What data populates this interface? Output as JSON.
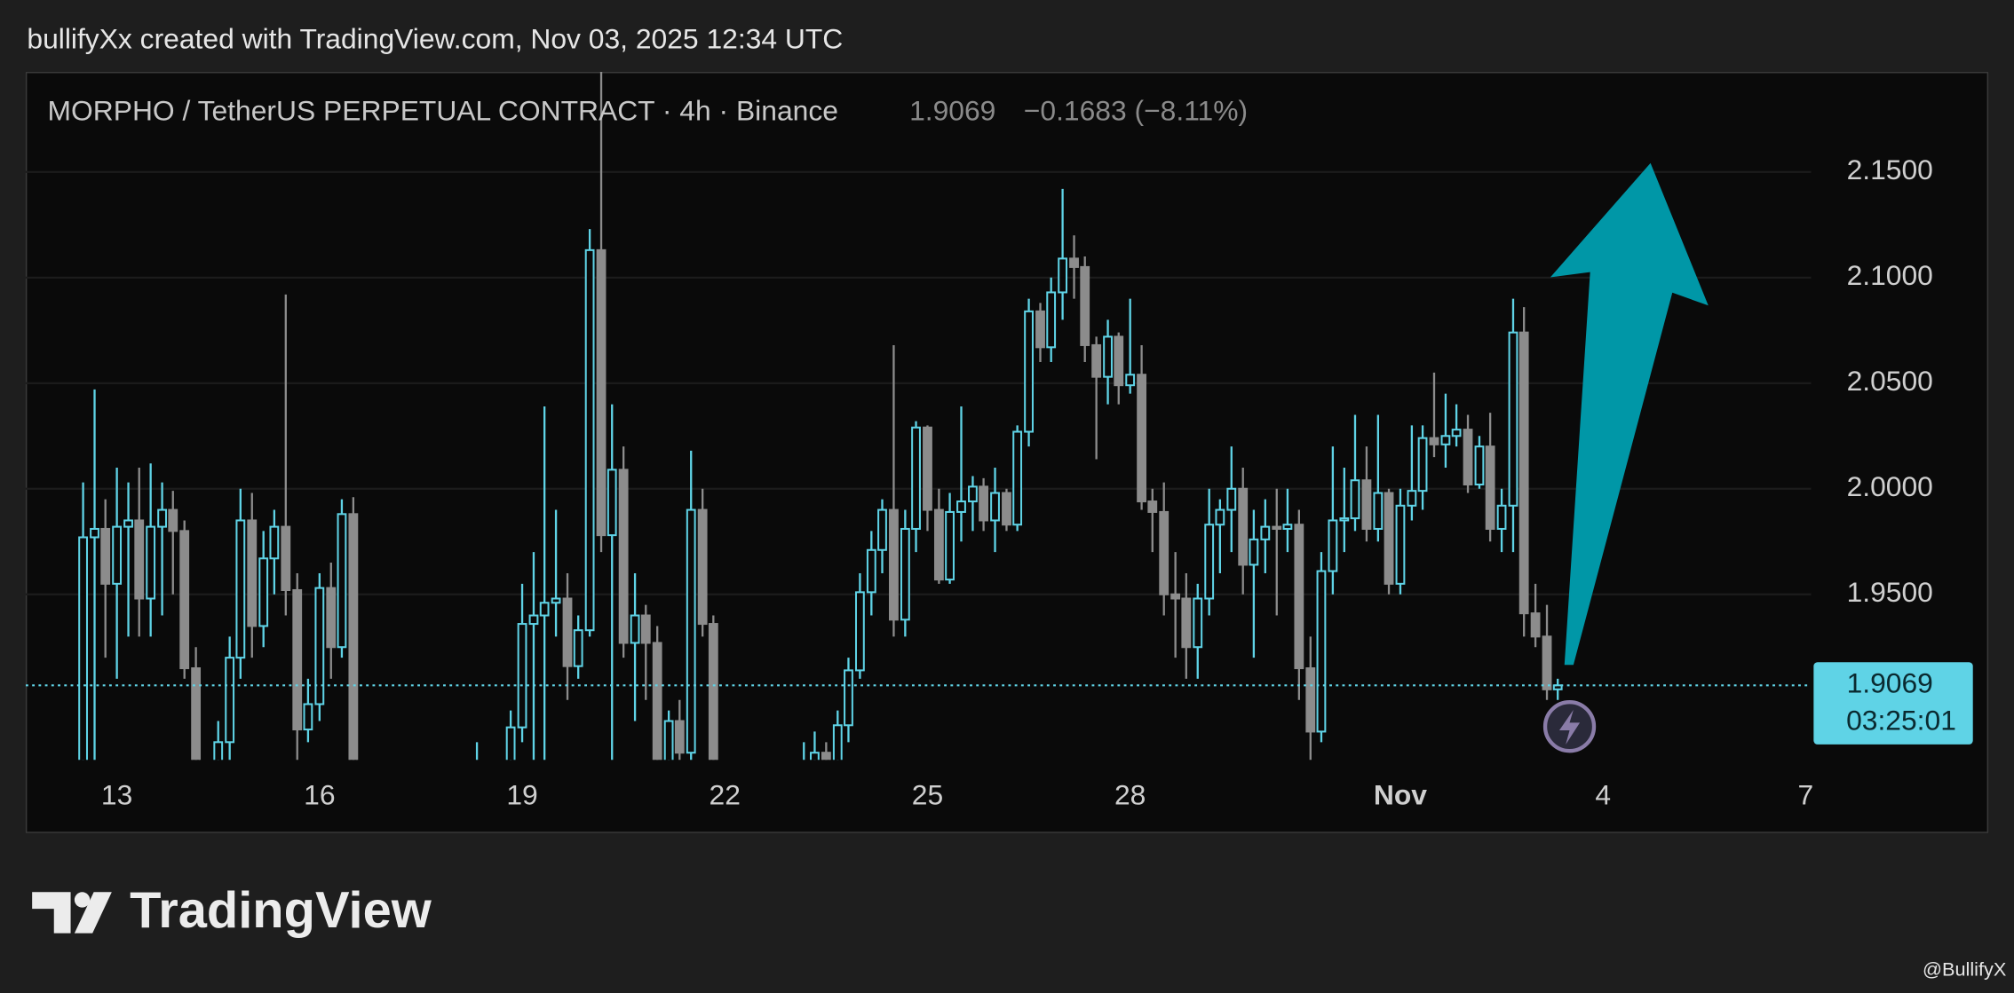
{
  "header": {
    "caption": "bullifyXx created with TradingView.com, Nov 03, 2025 12:34 UTC"
  },
  "footer": {
    "logo": "TradingView",
    "watermark": "@BullifyX"
  },
  "chart_data": {
    "type": "candlestick",
    "title": "MORPHO / TetherUS PERPETUAL CONTRACT · 4h · Binance",
    "change": "−0.1683 (−8.11%)",
    "last_price": 1.9069,
    "countdown": "03:25:01",
    "up_color": "#5fd3e6",
    "down_color": "#8c8c8c",
    "grid": true,
    "xlim": [
      11.65,
      38.08
    ],
    "xticks": [
      13,
      16,
      19,
      22,
      25,
      28,
      {
        "value": 32,
        "label": "Nov"
      },
      {
        "value": 35,
        "label": "4"
      },
      {
        "value": 38,
        "label": "7"
      }
    ],
    "ylim": [
      1.8716,
      2.1974
    ],
    "yticks": [
      {
        "value": 2.15,
        "label": "2.1500"
      },
      {
        "value": 2.1,
        "label": "2.1000"
      },
      {
        "value": 2.05,
        "label": "2.0500"
      },
      {
        "value": 2,
        "label": "2.0000"
      },
      {
        "value": 1.95,
        "label": "1.9500"
      }
    ],
    "x": [
      12.5,
      12.67,
      12.83,
      13,
      13.17,
      13.33,
      13.5,
      13.67,
      13.83,
      14,
      14.17,
      14.33,
      14.5,
      14.67,
      14.83,
      15,
      15.17,
      15.33,
      15.5,
      15.67,
      15.83,
      16,
      16.17,
      16.33,
      16.5,
      16.67,
      16.83,
      17,
      17.17,
      17.33,
      17.5,
      17.67,
      17.83,
      18,
      18.17,
      18.33,
      18.5,
      18.67,
      18.83,
      19,
      19.17,
      19.33,
      19.5,
      19.67,
      19.83,
      20,
      20.17,
      20.33,
      20.5,
      20.67,
      20.83,
      21,
      21.17,
      21.33,
      21.5,
      21.67,
      21.83,
      22,
      22.17,
      22.33,
      22.5,
      22.67,
      22.83,
      23,
      23.17,
      23.33,
      23.5,
      23.67,
      23.83,
      24,
      24.17,
      24.33,
      24.5,
      24.67,
      24.83,
      25,
      25.17,
      25.33,
      25.5,
      25.67,
      25.83,
      26,
      26.17,
      26.33,
      26.5,
      26.67,
      26.83,
      27,
      27.17,
      27.33,
      27.5,
      27.67,
      27.83,
      28,
      28.17,
      28.33,
      28.5,
      28.67,
      28.83,
      29,
      29.17,
      29.33,
      29.5,
      29.67,
      29.83,
      30,
      30.17,
      30.33,
      30.5,
      30.67,
      30.83,
      31,
      31.17,
      31.33,
      31.5,
      31.67,
      31.83,
      32,
      32.17,
      32.33,
      32.5,
      32.67,
      32.83,
      33,
      33.17,
      33.33,
      33.5,
      33.67,
      33.83,
      34,
      34.17,
      34.33
    ],
    "open": [
      1.86,
      1.977,
      1.981,
      1.955,
      1.982,
      1.985,
      1.948,
      1.982,
      1.99,
      1.98,
      1.915,
      1.86,
      1.845,
      1.88,
      1.92,
      1.985,
      1.935,
      1.967,
      1.982,
      1.952,
      1.886,
      1.898,
      1.953,
      1.925,
      1.988,
      1.86,
      1.83,
      1.84,
      1.825,
      1.835,
      1.85,
      1.838,
      1.82,
      1.83,
      1.845,
      1.85,
      1.865,
      1.84,
      1.85,
      1.887,
      1.936,
      1.94,
      1.946,
      1.948,
      1.916,
      1.933,
      2.113,
      1.978,
      2.009,
      1.927,
      1.94,
      1.927,
      1.86,
      1.89,
      1.875,
      1.99,
      1.936,
      1.86,
      1.84,
      1.83,
      1.845,
      1.835,
      1.82,
      1.83,
      1.85,
      1.87,
      1.875,
      1.86,
      1.888,
      1.914,
      1.951,
      1.971,
      1.99,
      1.938,
      1.981,
      2.029,
      1.99,
      1.957,
      1.989,
      1.994,
      2.001,
      1.985,
      1.998,
      1.983,
      2.027,
      2.084,
      2.067,
      2.093,
      2.109,
      2.105,
      2.068,
      2.053,
      2.072,
      2.049,
      2.054,
      1.994,
      1.989,
      1.95,
      1.948,
      1.925,
      1.948,
      1.983,
      1.99,
      2.0,
      1.964,
      1.976,
      1.982,
      1.981,
      1.983,
      1.915,
      1.885,
      1.961,
      1.985,
      1.986,
      2.004,
      1.981,
      1.998,
      1.955,
      1.992,
      1.999,
      2.024,
      2.021,
      2.025,
      2.028,
      2.002,
      2.02,
      1.981,
      1.992,
      2.074,
      1.941,
      1.93,
      1.905
    ],
    "high": [
      2.003,
      2.047,
      1.995,
      2.01,
      2.003,
      2.01,
      2.012,
      2.003,
      1.999,
      1.985,
      1.925,
      1.87,
      1.89,
      1.93,
      2.0,
      1.998,
      1.98,
      1.99,
      2.092,
      1.96,
      1.91,
      1.96,
      1.965,
      1.995,
      1.996,
      1.868,
      1.85,
      1.86,
      1.84,
      1.86,
      1.865,
      1.85,
      1.84,
      1.855,
      1.86,
      1.88,
      1.87,
      1.86,
      1.895,
      1.955,
      1.97,
      2.039,
      1.99,
      1.96,
      1.94,
      2.123,
      2.22,
      2.04,
      2.02,
      1.96,
      1.945,
      1.935,
      1.895,
      1.9,
      2.018,
      2.0,
      1.94,
      1.865,
      1.86,
      1.85,
      1.86,
      1.85,
      1.84,
      1.86,
      1.88,
      1.885,
      1.88,
      1.895,
      1.92,
      1.96,
      1.98,
      1.995,
      2.068,
      1.99,
      2.032,
      2.03,
      2.0,
      1.998,
      2.039,
      2.006,
      2.005,
      2.01,
      2.0,
      2.03,
      2.09,
      2.088,
      2.1,
      2.142,
      2.12,
      2.11,
      2.072,
      2.08,
      2.074,
      2.09,
      2.068,
      2.0,
      2.003,
      1.97,
      1.96,
      1.955,
      2.0,
      1.995,
      2.02,
      2.01,
      1.99,
      1.995,
      2.0,
      2.0,
      1.99,
      1.93,
      1.97,
      2.02,
      2.01,
      2.035,
      2.02,
      2.035,
      2.0,
      2.0,
      2.03,
      2.03,
      2.055,
      2.045,
      2.04,
      2.035,
      2.025,
      2.036,
      2.0,
      2.09,
      2.086,
      1.955,
      1.945,
      1.91
    ],
    "low": [
      1.85,
      1.86,
      1.92,
      1.91,
      1.93,
      1.93,
      1.93,
      1.94,
      1.95,
      1.91,
      1.84,
      1.83,
      1.83,
      1.87,
      1.91,
      1.92,
      1.925,
      1.95,
      1.94,
      1.87,
      1.88,
      1.89,
      1.91,
      1.92,
      1.85,
      1.82,
      1.81,
      1.82,
      1.8,
      1.82,
      1.83,
      1.81,
      1.8,
      1.82,
      1.83,
      1.84,
      1.83,
      1.82,
      1.84,
      1.88,
      1.85,
      1.86,
      1.93,
      1.9,
      1.91,
      1.93,
      1.97,
      1.87,
      1.92,
      1.89,
      1.9,
      1.85,
      1.85,
      1.86,
      1.86,
      1.93,
      1.84,
      1.83,
      1.82,
      1.81,
      1.82,
      1.81,
      1.8,
      1.82,
      1.84,
      1.85,
      1.85,
      1.855,
      1.88,
      1.91,
      1.94,
      1.96,
      1.93,
      1.93,
      1.97,
      1.98,
      1.955,
      1.955,
      1.975,
      1.98,
      1.98,
      1.97,
      1.98,
      1.98,
      2.02,
      2.06,
      2.06,
      2.08,
      2.09,
      2.06,
      2.014,
      2.04,
      2.04,
      2.045,
      1.99,
      1.97,
      1.94,
      1.92,
      1.91,
      1.91,
      1.94,
      1.96,
      1.97,
      1.95,
      1.92,
      1.96,
      1.94,
      1.97,
      1.9,
      1.87,
      1.88,
      1.95,
      1.97,
      1.98,
      1.975,
      1.975,
      1.95,
      1.95,
      1.985,
      1.99,
      2.015,
      2.01,
      2.02,
      1.998,
      2.0,
      1.975,
      1.97,
      1.97,
      1.93,
      1.925,
      1.9,
      1.9
    ],
    "close": [
      1.977,
      1.981,
      1.955,
      1.982,
      1.985,
      1.948,
      1.982,
      1.99,
      1.98,
      1.915,
      1.86,
      1.845,
      1.88,
      1.92,
      1.985,
      1.935,
      1.967,
      1.982,
      1.952,
      1.886,
      1.898,
      1.953,
      1.925,
      1.988,
      1.86,
      1.83,
      1.84,
      1.825,
      1.835,
      1.85,
      1.838,
      1.82,
      1.83,
      1.845,
      1.85,
      1.865,
      1.84,
      1.85,
      1.887,
      1.936,
      1.94,
      1.946,
      1.948,
      1.916,
      1.933,
      2.113,
      1.978,
      2.009,
      1.927,
      1.94,
      1.927,
      1.86,
      1.89,
      1.875,
      1.99,
      1.936,
      1.86,
      1.84,
      1.83,
      1.845,
      1.835,
      1.82,
      1.83,
      1.85,
      1.87,
      1.875,
      1.86,
      1.888,
      1.914,
      1.951,
      1.971,
      1.99,
      1.938,
      1.981,
      2.029,
      1.99,
      1.957,
      1.989,
      1.994,
      2.001,
      1.985,
      1.998,
      1.983,
      2.027,
      2.084,
      2.067,
      2.093,
      2.109,
      2.105,
      2.068,
      2.053,
      2.072,
      2.049,
      2.054,
      1.994,
      1.989,
      1.95,
      1.948,
      1.925,
      1.948,
      1.983,
      1.99,
      2.0,
      1.964,
      1.976,
      1.982,
      1.981,
      1.983,
      1.915,
      1.885,
      1.961,
      1.985,
      1.986,
      2.004,
      1.981,
      1.998,
      1.955,
      1.992,
      1.999,
      2.024,
      2.021,
      2.025,
      2.028,
      2.002,
      2.02,
      1.981,
      1.992,
      2.074,
      1.941,
      1.93,
      1.905,
      1.9069
    ]
  }
}
